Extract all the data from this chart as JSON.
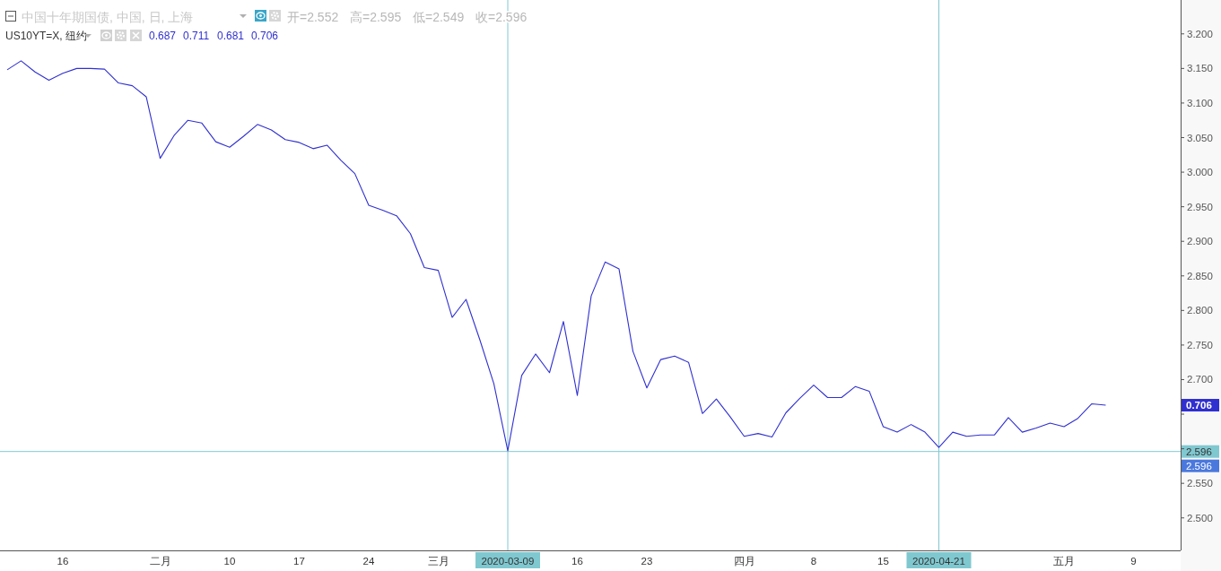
{
  "chart_data": {
    "type": "line",
    "categories": [
      null,
      null,
      null,
      null,
      "16",
      null,
      null,
      null,
      null,
      null,
      null,
      "二月",
      null,
      null,
      null,
      null,
      "10",
      null,
      null,
      null,
      null,
      "17",
      null,
      null,
      null,
      null,
      "24",
      null,
      null,
      null,
      null,
      "三月",
      null,
      null,
      null,
      null,
      "2020-03-09",
      null,
      null,
      null,
      null,
      "16",
      null,
      null,
      null,
      null,
      "23",
      null,
      null,
      null,
      null,
      null,
      null,
      "四月",
      null,
      null,
      null,
      null,
      "8",
      null,
      null,
      null,
      null,
      "15",
      null,
      null,
      null,
      "2020-04-21",
      null,
      null,
      null,
      null,
      null,
      null,
      null,
      null,
      "五月",
      null,
      null,
      null,
      null,
      "9",
      null,
      null,
      null
    ],
    "series": [
      {
        "name": "US10YT=X, 纽约",
        "color": "#3030d0",
        "values": [
          3.148,
          3.161,
          3.145,
          3.133,
          3.143,
          3.15,
          3.15,
          3.149,
          3.129,
          3.125,
          3.109,
          3.02,
          3.053,
          3.075,
          3.071,
          3.044,
          3.036,
          3.052,
          3.069,
          3.061,
          3.047,
          3.043,
          3.034,
          3.039,
          3.017,
          2.998,
          2.952,
          2.945,
          2.937,
          2.911,
          2.862,
          2.858,
          2.79,
          2.816,
          2.757,
          2.694,
          2.597,
          2.706,
          2.737,
          2.71,
          2.784,
          2.677,
          2.821,
          2.87,
          2.86,
          2.741,
          2.688,
          2.729,
          2.734,
          2.725,
          2.651,
          2.672,
          2.646,
          2.618,
          2.622,
          2.617,
          2.652,
          2.673,
          2.692,
          2.674,
          2.674,
          2.69,
          2.683,
          2.632,
          2.624,
          2.635,
          2.624,
          2.602,
          2.624,
          2.618,
          2.62,
          2.62,
          2.645,
          2.624,
          2.63,
          2.637,
          2.632,
          2.644,
          2.665,
          2.663,
          null,
          null,
          null,
          null,
          null
        ]
      }
    ],
    "ylim": [
      2.453,
      3.249
    ],
    "yticks": [
      {
        "value": 2.5,
        "label": "2.500"
      },
      {
        "value": 2.55,
        "label": "2.550"
      },
      {
        "value": 2.6,
        "label": null
      },
      {
        "value": 2.65,
        "label": null
      },
      {
        "value": 2.7,
        "label": "2.700"
      },
      {
        "value": 2.75,
        "label": "2.750"
      },
      {
        "value": 2.8,
        "label": "2.800"
      },
      {
        "value": 2.85,
        "label": "2.850"
      },
      {
        "value": 2.9,
        "label": "2.900"
      },
      {
        "value": 2.95,
        "label": "2.950"
      },
      {
        "value": 3.0,
        "label": "3.000"
      },
      {
        "value": 3.05,
        "label": "3.050"
      },
      {
        "value": 3.1,
        "label": "3.100"
      },
      {
        "value": 3.15,
        "label": "3.150"
      },
      {
        "value": 3.2,
        "label": "3.200"
      }
    ],
    "ref_lines": [
      {
        "axis": "x",
        "value": "2020-03-09",
        "color": "#80c8d0"
      },
      {
        "axis": "x",
        "value": "2020-04-21",
        "color": "#80c8d0"
      },
      {
        "axis": "y",
        "value": 2.596,
        "label": "2.596",
        "color": "#80c8d0"
      }
    ],
    "annotations": [
      "中国十年期国债, 中国, 日, 上海",
      "开=2.552",
      "高=2.595",
      "低=2.549",
      "收=2.596",
      "0.687",
      "0.711",
      "0.681",
      "0.706",
      {
        "text": "0.706",
        "y": 2.663
      },
      "2.596"
    ],
    "legend": "top left",
    "grid": false,
    "marker": "none",
    "line_style": "solid"
  }
}
